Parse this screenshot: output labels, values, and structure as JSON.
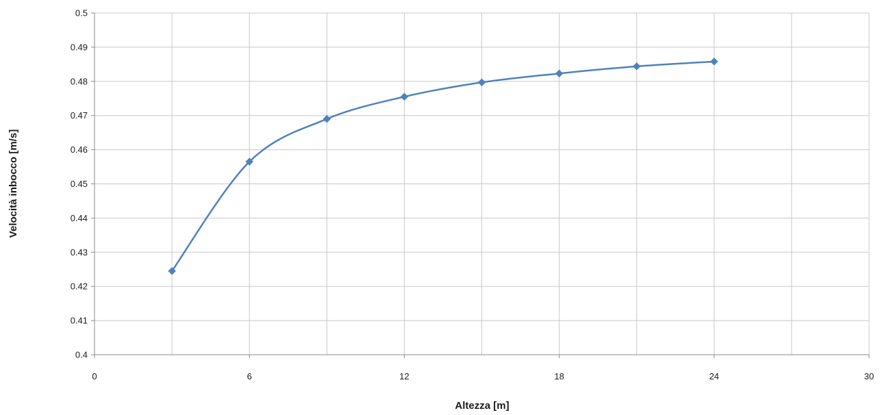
{
  "chart_data": {
    "type": "scatter",
    "title": "",
    "xlabel": "Altezza [m]",
    "ylabel": "Velocità inbocco [m/s]",
    "xlim": [
      0,
      30
    ],
    "ylim": [
      0.4,
      0.5
    ],
    "xticks": [
      0,
      6,
      12,
      18,
      24,
      30
    ],
    "yticks": [
      0.4,
      0.41,
      0.42,
      0.43,
      0.44,
      0.45,
      0.46,
      0.47,
      0.48,
      0.49,
      0.5
    ],
    "xtick_labels": [
      "0",
      "6",
      "12",
      "18",
      "24",
      "30"
    ],
    "ytick_labels": [
      "0.4",
      "0.41",
      "0.42",
      "0.43",
      "0.44",
      "0.45",
      "0.46",
      "0.47",
      "0.48",
      "0.49",
      "0.5"
    ],
    "x_gridlines": [
      3,
      6,
      9,
      12,
      15,
      18,
      21,
      24,
      27,
      30
    ],
    "grid": true,
    "smooth_line": true,
    "marker": "diamond",
    "line_color": "#4F81BD",
    "series": [
      {
        "x": [
          3,
          6,
          9,
          12,
          15,
          18,
          21,
          24
        ],
        "values": [
          0.4245,
          0.4565,
          0.469,
          0.4755,
          0.4797,
          0.4823,
          0.4844,
          0.4858
        ]
      }
    ]
  }
}
